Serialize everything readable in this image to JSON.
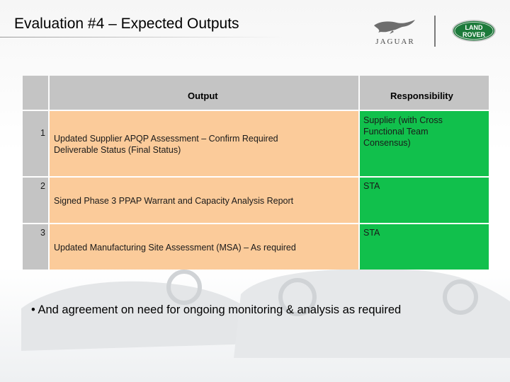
{
  "title": "Evaluation #4 – Expected Outputs",
  "logos": {
    "jaguar_text": "JAGUAR",
    "landrover_line1": "LAND",
    "landrover_line2": "ROVER"
  },
  "table": {
    "headers": {
      "output": "Output",
      "responsibility": "Responsibility"
    },
    "rows": [
      {
        "number": "1",
        "output": "Updated Supplier APQP Assessment – Confirm Required Deliverable Status (Final Status)",
        "responsibility": "Supplier (with Cross Functional Team Consensus)"
      },
      {
        "number": "2",
        "output": "Signed Phase 3 PPAP Warrant and Capacity Analysis Report",
        "responsibility": "STA"
      },
      {
        "number": "3",
        "output": "Updated Manufacturing Site Assessment (MSA) – As required",
        "responsibility": "STA"
      }
    ]
  },
  "bullet": "• And agreement on need for ongoing monitoring & analysis as required",
  "colors": {
    "header": "#c4c4c4",
    "output_cell": "#fbcb9a",
    "responsibility_cell": "#11c04c",
    "landrover_green": "#1c7a3a"
  }
}
